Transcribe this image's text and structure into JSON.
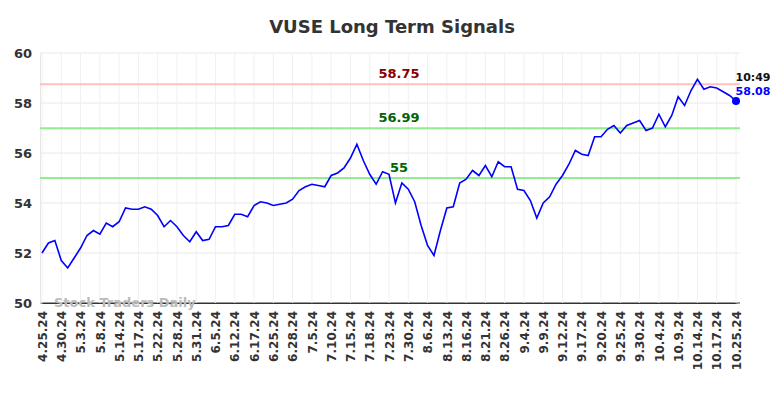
{
  "chart_data": {
    "type": "line",
    "title": "VUSE Long Term Signals",
    "watermark": "Stock Traders Daily",
    "categories": [
      "4.25.24",
      null,
      null,
      "4.30.24",
      null,
      null,
      "5.3.24",
      null,
      null,
      "5.8.24",
      null,
      null,
      "5.14.24",
      null,
      null,
      "5.17.24",
      null,
      null,
      "5.22.24",
      null,
      null,
      "5.28.24",
      null,
      null,
      "5.31.24",
      null,
      null,
      "6.5.24",
      null,
      null,
      "6.12.24",
      null,
      null,
      "6.17.24",
      null,
      null,
      "6.25.24",
      null,
      null,
      "6.28.24",
      null,
      null,
      "7.5.24",
      null,
      null,
      "7.10.24",
      null,
      null,
      "7.15.24",
      null,
      null,
      "7.18.24",
      null,
      null,
      "7.23.24",
      null,
      null,
      "7.30.24",
      null,
      null,
      "8.6.24",
      null,
      null,
      "8.13.24",
      null,
      null,
      "8.16.24",
      null,
      null,
      "8.21.24",
      null,
      null,
      "8.26.24",
      null,
      null,
      "9.4.24",
      null,
      null,
      "9.9.24",
      null,
      null,
      "9.12.24",
      null,
      null,
      "9.17.24",
      null,
      null,
      "9.20.24",
      null,
      null,
      "9.25.24",
      null,
      null,
      "9.30.24",
      null,
      null,
      "10.4.24",
      null,
      null,
      "10.9.24",
      null,
      null,
      "10.14.24",
      null,
      null,
      "10.17.24",
      null,
      null,
      "10.25.24"
    ],
    "values": [
      52.0,
      52.4,
      52.5,
      51.7,
      51.4,
      51.8,
      52.2,
      52.7,
      52.9,
      52.75,
      53.2,
      53.05,
      53.25,
      53.8,
      53.75,
      53.75,
      53.85,
      53.75,
      53.5,
      53.05,
      53.3,
      53.05,
      52.7,
      52.45,
      52.85,
      52.5,
      52.55,
      53.05,
      53.05,
      53.1,
      53.55,
      53.55,
      53.45,
      53.9,
      54.05,
      54.0,
      53.9,
      53.95,
      54.0,
      54.15,
      54.5,
      54.65,
      54.75,
      54.7,
      54.65,
      55.1,
      55.2,
      55.4,
      55.8,
      56.35,
      55.7,
      55.15,
      54.75,
      55.25,
      55.15,
      54.0,
      54.8,
      54.55,
      54.05,
      53.1,
      52.3,
      51.9,
      52.9,
      53.8,
      53.85,
      54.8,
      54.95,
      55.3,
      55.1,
      55.5,
      55.05,
      55.65,
      55.45,
      55.45,
      54.55,
      54.5,
      54.1,
      53.4,
      54.0,
      54.25,
      54.75,
      55.1,
      55.55,
      56.1,
      55.95,
      55.9,
      56.65,
      56.65,
      56.95,
      57.1,
      56.8,
      57.1,
      57.2,
      57.3,
      56.9,
      57.0,
      57.55,
      57.05,
      57.5,
      58.25,
      57.9,
      58.5,
      58.95,
      58.55,
      58.65,
      58.6,
      58.45,
      58.3,
      58.08
    ],
    "value_labels": [
      null,
      null,
      null,
      null,
      null,
      null,
      null,
      null,
      null,
      null,
      null,
      null,
      null,
      null,
      null,
      null,
      null,
      null,
      null,
      null,
      null,
      null,
      null,
      null,
      null,
      null,
      null,
      null,
      null,
      null,
      null,
      null,
      null,
      null,
      null,
      null,
      null,
      null,
      null,
      null,
      null,
      null,
      null,
      null,
      null,
      null,
      null,
      null,
      null,
      null,
      null,
      null,
      null,
      null,
      null,
      null,
      null,
      null,
      null,
      null,
      null,
      null,
      null,
      null,
      null,
      null,
      null,
      null,
      null,
      null,
      null,
      null,
      null,
      null,
      null,
      null,
      null,
      null,
      null,
      null,
      null,
      null,
      null,
      null,
      null,
      null,
      null,
      null,
      null,
      null,
      null,
      null,
      null,
      null,
      null,
      null,
      null,
      null,
      null,
      null,
      null,
      null,
      null,
      null,
      null,
      null,
      null,
      null,
      "58.08"
    ],
    "annotations": [
      "10:49"
    ],
    "color": "#0000ff",
    "ylim": [
      50,
      60
    ],
    "yticks": [
      50,
      52,
      54,
      56,
      58,
      60
    ],
    "grid": true,
    "reference_lines": [
      {
        "value": 58.75,
        "label": "58.75",
        "color": "#ffc0c0",
        "label_color": "#8b0000"
      },
      {
        "value": 56.99,
        "label": "56.99",
        "color": "#90ee90",
        "label_color": "#006400"
      },
      {
        "value": 55,
        "label": "55",
        "color": "#90ee90",
        "label_color": "#006400"
      }
    ]
  }
}
